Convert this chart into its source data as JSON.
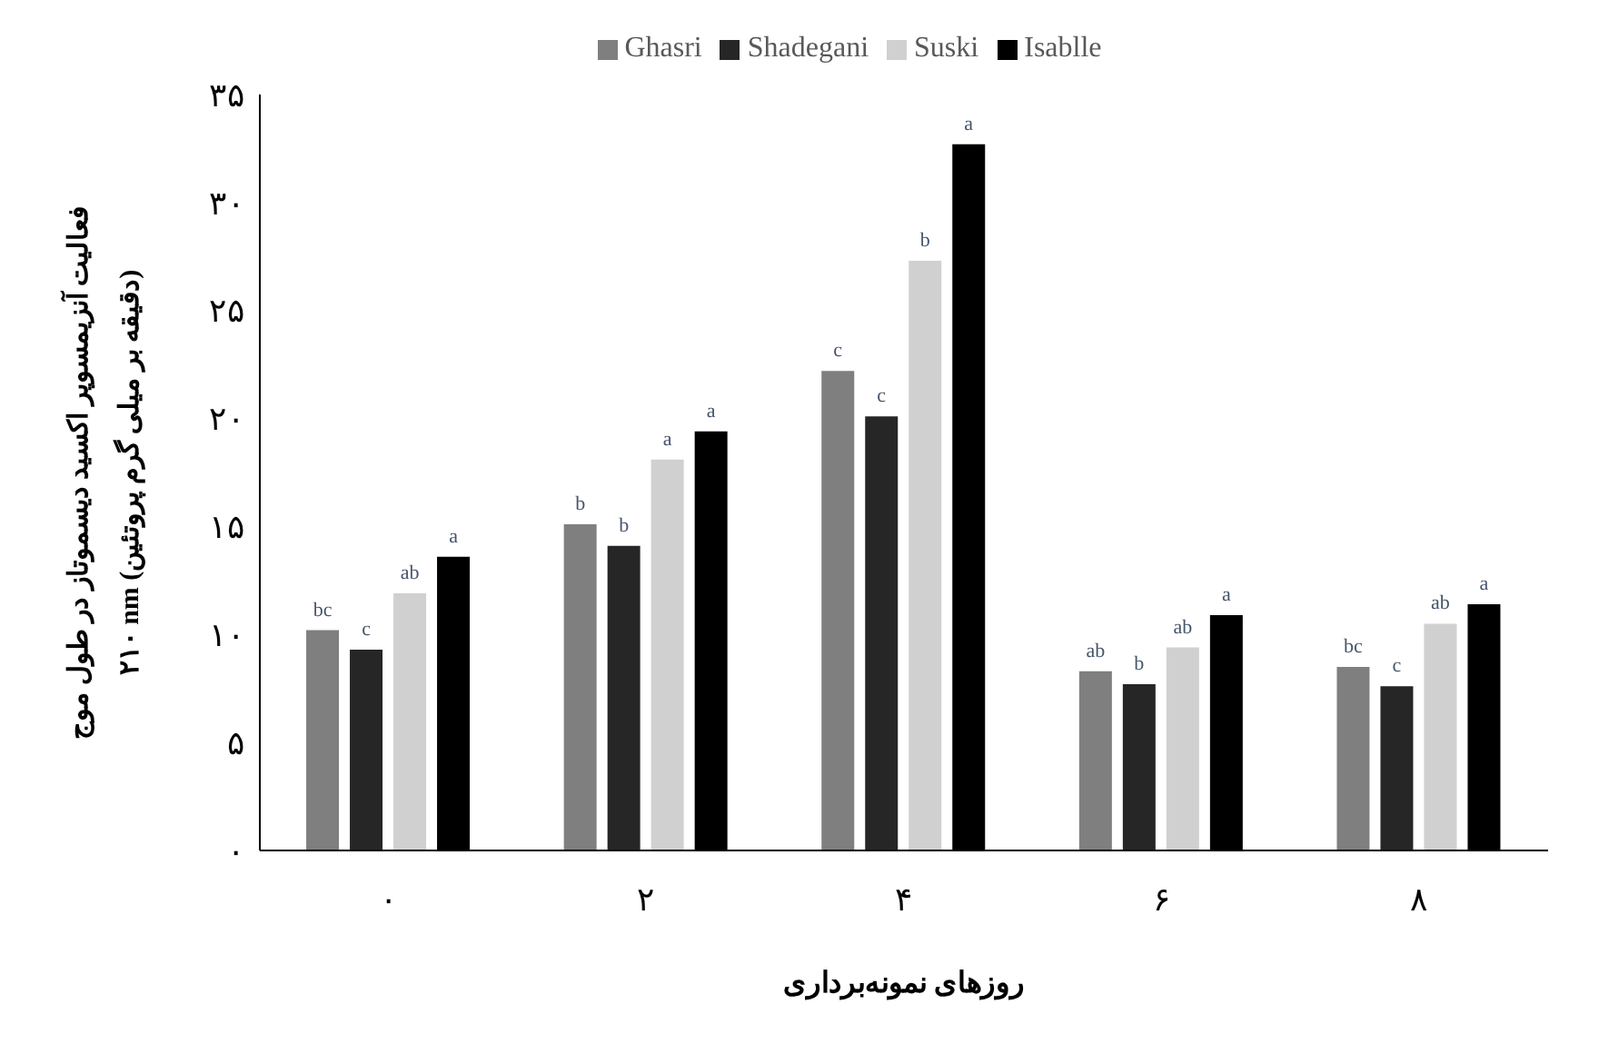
{
  "chart_data": {
    "type": "bar",
    "xlabel": "روزهای نمونه‌برداری",
    "ylabel": "فعالیت آنزیمسوپر اکسید دیسموتاز در طول موج\n۲۱۰ nm (دقیقه بر میلی گرم پروتئین)",
    "categories": [
      "۰",
      "۲",
      "۴",
      "۶",
      "۸"
    ],
    "series": [
      {
        "name": "Ghasri",
        "color": "#7f7f7f",
        "values": [
          10.2,
          15.1,
          22.2,
          8.3,
          8.5
        ],
        "value_labels": [
          "bc",
          "b",
          "c",
          "ab",
          "bc"
        ]
      },
      {
        "name": "Shadegani",
        "color": "#262626",
        "values": [
          9.3,
          14.1,
          20.1,
          7.7,
          7.6
        ],
        "value_labels": [
          "c",
          "b",
          "c",
          "b",
          "c"
        ]
      },
      {
        "name": "Suski",
        "color": "#d0d0d0",
        "values": [
          11.9,
          18.1,
          27.3,
          9.4,
          10.5
        ],
        "value_labels": [
          "ab",
          "a",
          "b",
          "ab",
          "ab"
        ]
      },
      {
        "name": "Isablle",
        "color": "#000000",
        "values": [
          13.6,
          19.4,
          32.7,
          10.9,
          11.4
        ],
        "value_labels": [
          "a",
          "a",
          "a",
          "a",
          "a"
        ]
      }
    ],
    "ylim": [
      0,
      35
    ],
    "yticks": [
      {
        "value": 0,
        "label": "۰"
      },
      {
        "value": 5,
        "label": "۵"
      },
      {
        "value": 10,
        "label": "۱۰"
      },
      {
        "value": 15,
        "label": "۱۵"
      },
      {
        "value": 20,
        "label": "۲۰"
      },
      {
        "value": 25,
        "label": "۲۵"
      },
      {
        "value": 30,
        "label": "۳۰"
      },
      {
        "value": 35,
        "label": "۳۵"
      }
    ],
    "grid": false,
    "legend": "top"
  }
}
